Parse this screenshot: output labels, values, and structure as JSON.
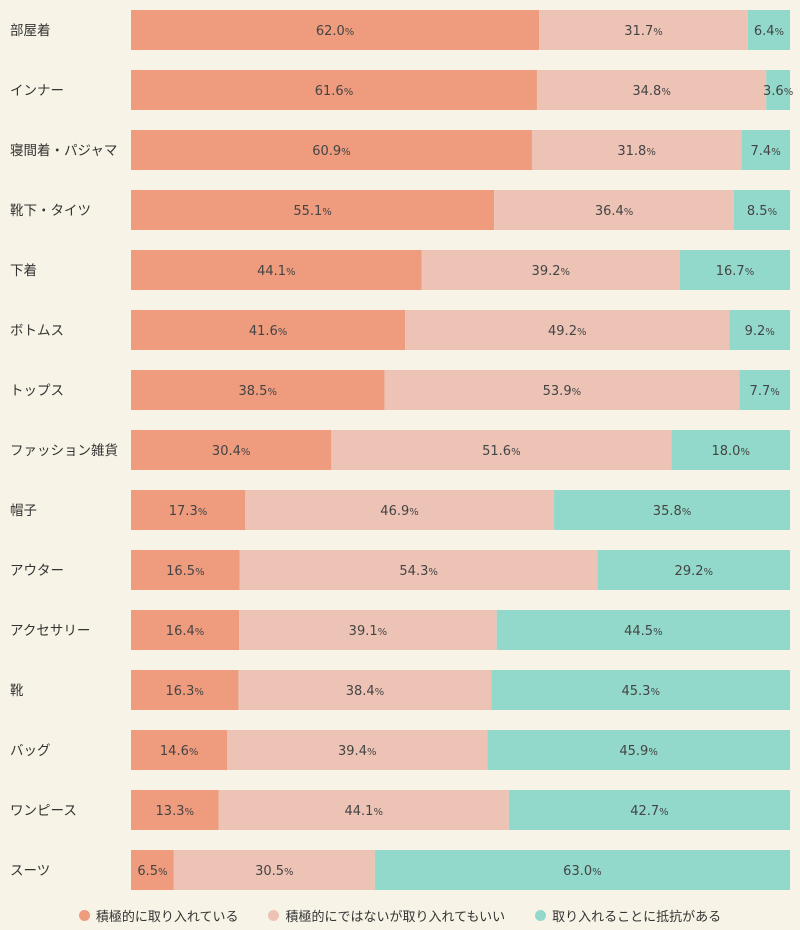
{
  "chart_data": {
    "type": "bar",
    "orientation": "horizontal",
    "stacked": true,
    "normalized": true,
    "unit": "%",
    "categories": [
      "部屋着",
      "インナー",
      "寝間着・パジャマ",
      "靴下・タイツ",
      "下着",
      "ボトムス",
      "トップス",
      "ファッション雑貨",
      "帽子",
      "アウター",
      "アクセサリー",
      "靴",
      "バッグ",
      "ワンピース",
      "スーツ"
    ],
    "series": [
      {
        "name": "積極的に取り入れている",
        "color": "#ee9b7e",
        "values": [
          62.0,
          61.6,
          60.9,
          55.1,
          44.1,
          41.6,
          38.5,
          30.4,
          17.3,
          16.5,
          16.4,
          16.3,
          14.6,
          13.3,
          6.5
        ]
      },
      {
        "name": "積極的にではないが取り入れてもいい",
        "color": "#edc3b6",
        "values": [
          31.7,
          34.8,
          31.8,
          36.4,
          39.2,
          49.2,
          53.9,
          51.6,
          46.9,
          54.3,
          39.1,
          38.4,
          39.4,
          44.1,
          30.5
        ]
      },
      {
        "name": "取り入れることに抵抗がある",
        "color": "#93d9cb",
        "values": [
          6.4,
          3.6,
          7.4,
          8.5,
          16.7,
          9.2,
          7.7,
          18.0,
          35.8,
          29.2,
          44.5,
          45.3,
          45.9,
          42.7,
          63.0
        ]
      }
    ],
    "legend_position": "bottom",
    "grid": false
  }
}
